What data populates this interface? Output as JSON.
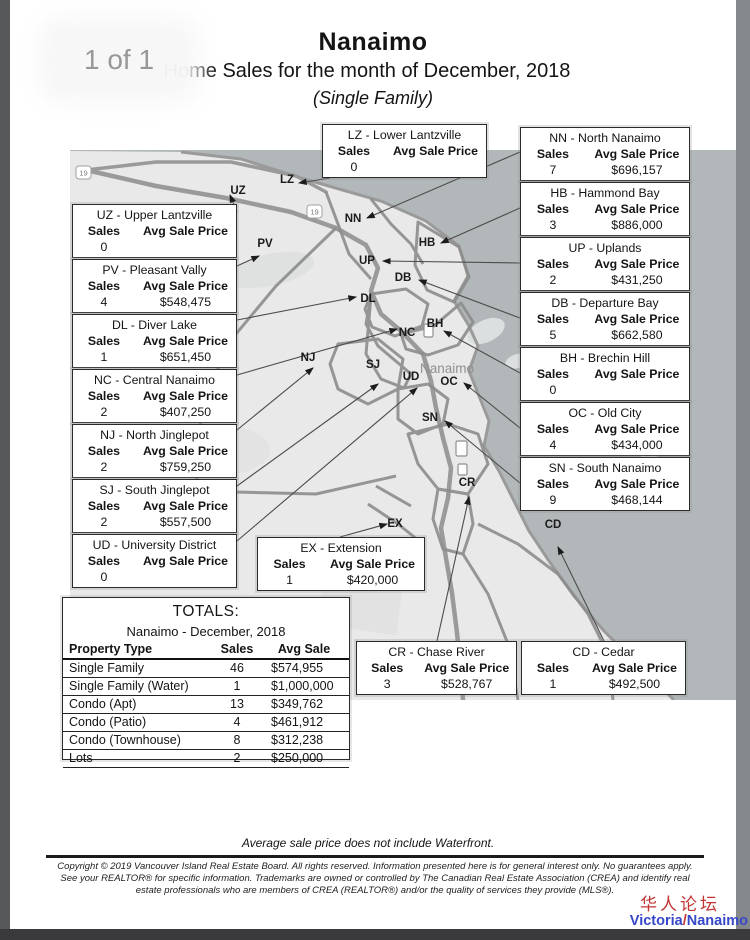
{
  "viewer": {
    "page_indicator": "1 of 1"
  },
  "header": {
    "title": "Nanaimo",
    "subtitle": "Home Sales for the month of December, 2018",
    "subtitle2": "(Single Family)"
  },
  "box_labels": {
    "sales": "Sales",
    "avg_price": "Avg Sale Price"
  },
  "map_boxes": [
    {
      "code": "LZ",
      "title": "LZ - Lower Lantzville",
      "sales": "0",
      "price": ""
    },
    {
      "code": "UZ",
      "title": "UZ - Upper Lantzville",
      "sales": "0",
      "price": ""
    },
    {
      "code": "PV",
      "title": "PV - Pleasant Vally",
      "sales": "4",
      "price": "$548,475"
    },
    {
      "code": "DL",
      "title": "DL - Diver Lake",
      "sales": "1",
      "price": "$651,450"
    },
    {
      "code": "NC",
      "title": "NC - Central Nanaimo",
      "sales": "2",
      "price": "$407,250"
    },
    {
      "code": "NJ",
      "title": "NJ - North Jinglepot",
      "sales": "2",
      "price": "$759,250"
    },
    {
      "code": "SJ",
      "title": "SJ - South Jinglepot",
      "sales": "2",
      "price": "$557,500"
    },
    {
      "code": "UD",
      "title": "UD - University District",
      "sales": "0",
      "price": ""
    },
    {
      "code": "NN",
      "title": "NN - North Nanaimo",
      "sales": "7",
      "price": "$696,157"
    },
    {
      "code": "HB",
      "title": "HB - Hammond Bay",
      "sales": "3",
      "price": "$886,000"
    },
    {
      "code": "UP",
      "title": "UP - Uplands",
      "sales": "2",
      "price": "$431,250"
    },
    {
      "code": "DB",
      "title": "DB - Departure Bay",
      "sales": "5",
      "price": "$662,580"
    },
    {
      "code": "BH",
      "title": "BH - Brechin Hill",
      "sales": "0",
      "price": ""
    },
    {
      "code": "OC",
      "title": "OC - Old City",
      "sales": "4",
      "price": "$434,000"
    },
    {
      "code": "SN",
      "title": "SN - South Nanaimo",
      "sales": "9",
      "price": "$468,144"
    },
    {
      "code": "EX",
      "title": "EX - Extension",
      "sales": "1",
      "price": "$420,000"
    },
    {
      "code": "CR",
      "title": "CR - Chase River",
      "sales": "3",
      "price": "$528,767"
    },
    {
      "code": "CD",
      "title": "CD - Cedar",
      "sales": "1",
      "price": "$492,500"
    }
  ],
  "map": {
    "region_labels": [
      "UZ",
      "LZ",
      "NN",
      "PV",
      "HB",
      "UP",
      "DB",
      "DL",
      "NC",
      "BH",
      "NJ",
      "SJ",
      "UD",
      "OC",
      "SN",
      "EX",
      "CR",
      "CD"
    ],
    "city_label": "Nanaimo",
    "highway_shield": "19",
    "colors": {
      "land": "#e9e9e9",
      "water": "#b2b8ba",
      "road": "#9a9a9a"
    }
  },
  "totals": {
    "title": "TOTALS:",
    "subtitle": "Nanaimo - December, 2018",
    "columns": [
      "Property Type",
      "Sales",
      "Avg Sale"
    ],
    "rows": [
      {
        "type": "Single Family",
        "sales": "46",
        "avg": "$574,955"
      },
      {
        "type": "Single Family (Water)",
        "sales": "1",
        "avg": "$1,000,000"
      },
      {
        "type": "Condo (Apt)",
        "sales": "13",
        "avg": "$349,762"
      },
      {
        "type": "Condo (Patio)",
        "sales": "4",
        "avg": "$461,912"
      },
      {
        "type": "Condo (Townhouse)",
        "sales": "8",
        "avg": "$312,238"
      },
      {
        "type": "Lots",
        "sales": "2",
        "avg": "$250,000"
      }
    ]
  },
  "footer": {
    "note": "Average sale price does not include Waterfront.",
    "copyright_lines": [
      "Copyright © 2019 Vancouver Island Real Estate Board. All rights reserved. Information presented here is for general interest only. No guarantees apply.",
      "See your REALTOR® for specific information. Trademarks are owned or controlled by The Canadian Real Estate Association (CREA) and identify real",
      "estate professionals who are members of CREA (REALTOR®) and/or the quality of services they provide (MLS®)."
    ],
    "watermark": {
      "line1": "华人论坛",
      "name_left": "Victoria",
      "slash": "/",
      "name_right": "Nanaimo",
      "red": "#c23535",
      "blue": "#3747c9"
    }
  }
}
